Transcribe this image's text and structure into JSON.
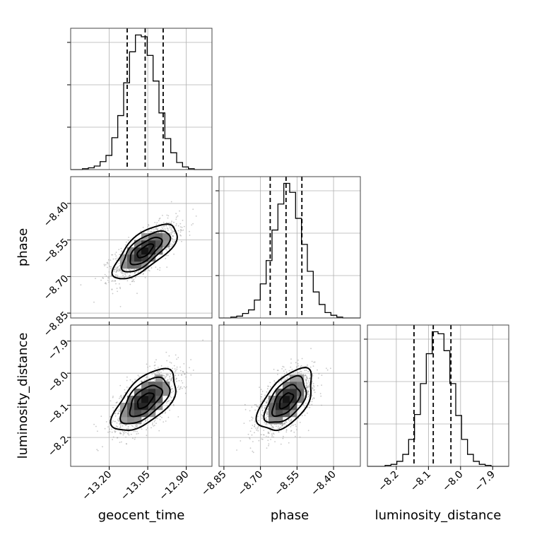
{
  "chart_data": {
    "type": "corner",
    "parameters": [
      {
        "label": "geocent_time",
        "range": [
          -13.35,
          -12.8
        ],
        "ticks": [
          -13.2,
          -13.05,
          -12.9
        ],
        "tick_labels": [
          "−13.20",
          "−13.05",
          "−12.90"
        ],
        "quantiles": [
          -13.13,
          -13.06,
          -12.99
        ],
        "center": -13.06,
        "sigma": 0.062
      },
      {
        "label": "phase",
        "range": [
          -8.87,
          -8.29
        ],
        "ticks": [
          -8.85,
          -8.7,
          -8.55,
          -8.4
        ],
        "tick_labels": [
          "−8.85",
          "−8.70",
          "−8.55",
          "−8.40"
        ],
        "quantiles": [
          -8.66,
          -8.595,
          -8.53
        ],
        "center": -8.595,
        "sigma": 0.056
      },
      {
        "label": "luminosity_distance",
        "range": [
          -8.29,
          -7.85
        ],
        "ticks": [
          -8.2,
          -8.1,
          -8.0,
          -7.9
        ],
        "tick_labels": [
          "−8.2",
          "−8.1",
          "−8.0",
          "−7.9"
        ],
        "quantiles": [
          -8.145,
          -8.085,
          -8.03
        ],
        "center": -8.085,
        "sigma": 0.048
      }
    ],
    "histograms": [
      {
        "parameter": "geocent_time",
        "bins": 24,
        "counts": [
          0,
          0,
          1,
          2,
          4,
          9,
          16,
          36,
          61,
          98,
          133,
          152,
          150,
          129,
          100,
          64,
          35,
          19,
          8,
          3,
          1,
          0,
          0,
          0
        ]
      },
      {
        "parameter": "phase",
        "bins": 24,
        "counts": [
          0,
          0,
          1,
          2,
          5,
          9,
          20,
          38,
          64,
          98,
          127,
          150,
          140,
          111,
          82,
          52,
          29,
          15,
          6,
          3,
          1,
          0,
          0,
          0
        ]
      },
      {
        "parameter": "luminosity_distance",
        "bins": 24,
        "counts": [
          0,
          0,
          0,
          1,
          2,
          5,
          12,
          27,
          52,
          83,
          113,
          135,
          133,
          116,
          83,
          51,
          27,
          12,
          5,
          2,
          1,
          0,
          0,
          0
        ]
      }
    ],
    "pairs": [
      {
        "x": "geocent_time",
        "y": "phase",
        "correlation": 0.7
      },
      {
        "x": "geocent_time",
        "y": "luminosity_distance",
        "correlation": 0.6
      },
      {
        "x": "phase",
        "y": "luminosity_distance",
        "correlation": 0.55
      }
    ],
    "contour_levels": [
      0.5,
      1.0,
      1.5,
      2.0
    ],
    "grid": true
  }
}
